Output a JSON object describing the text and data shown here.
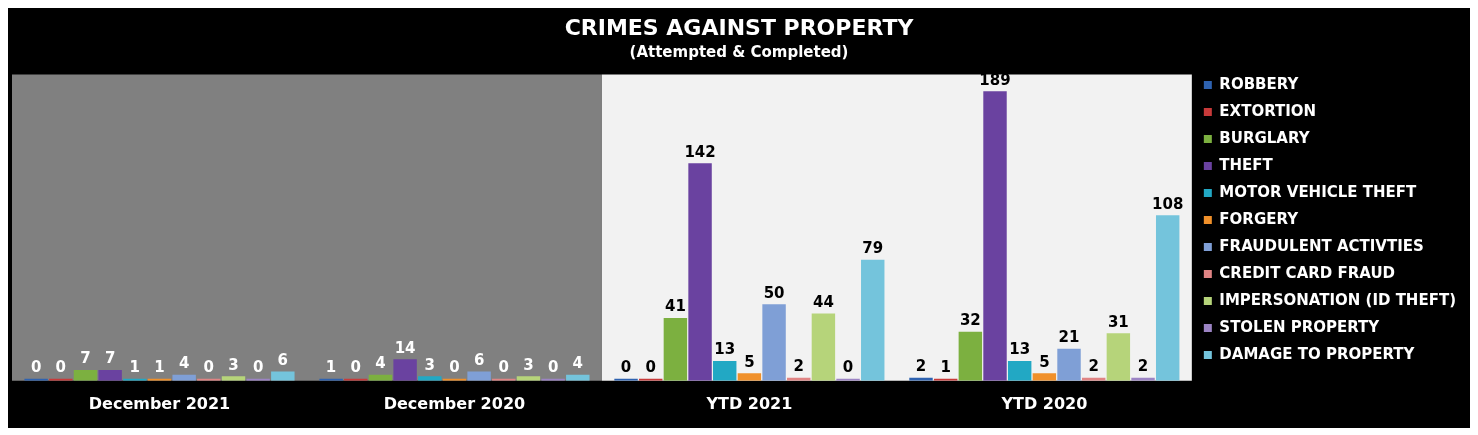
{
  "chart_data": {
    "type": "bar",
    "title": "CRIMES AGAINST PROPERTY",
    "subtitle": "(Attempted & Completed)",
    "categories": [
      "December 2021",
      "December 2020",
      "YTD 2021",
      "YTD 2020"
    ],
    "series": [
      {
        "name": "ROBBERY",
        "color": "#2e62b0",
        "values": [
          0,
          1,
          0,
          2
        ]
      },
      {
        "name": "EXTORTION",
        "color": "#c83a3a",
        "values": [
          0,
          0,
          0,
          1
        ]
      },
      {
        "name": "BURGLARY",
        "color": "#7cb040",
        "values": [
          7,
          4,
          41,
          32
        ]
      },
      {
        "name": "THEFT",
        "color": "#6a42a0",
        "values": [
          7,
          14,
          142,
          189
        ]
      },
      {
        "name": "MOTOR VEHICLE THEFT",
        "color": "#22a8c4",
        "values": [
          1,
          3,
          13,
          13
        ]
      },
      {
        "name": "FORGERY",
        "color": "#f0902a",
        "values": [
          1,
          0,
          5,
          5
        ]
      },
      {
        "name": "FRAUDULENT ACTIVTIES",
        "color": "#7f9fd6",
        "values": [
          4,
          6,
          50,
          21
        ]
      },
      {
        "name": "CREDIT CARD FRAUD",
        "color": "#e08484",
        "values": [
          0,
          0,
          2,
          2
        ]
      },
      {
        "name": "IMPERSONATION (ID THEFT)",
        "color": "#b6d47a",
        "values": [
          3,
          3,
          44,
          31
        ]
      },
      {
        "name": "STOLEN PROPERTY",
        "color": "#9c84c4",
        "values": [
          0,
          0,
          0,
          2
        ]
      },
      {
        "name": "DAMAGE TO PROPERTY",
        "color": "#74c4dc",
        "values": [
          6,
          4,
          79,
          108
        ]
      }
    ],
    "bands": [
      {
        "axis": "x",
        "from": "December 2021",
        "to": "December 2020",
        "color": "#808080"
      },
      {
        "axis": "x",
        "from": "YTD 2021",
        "to": "YTD 2020",
        "color": "#f2f2f2"
      }
    ],
    "data_labels": true,
    "legend": "right"
  }
}
